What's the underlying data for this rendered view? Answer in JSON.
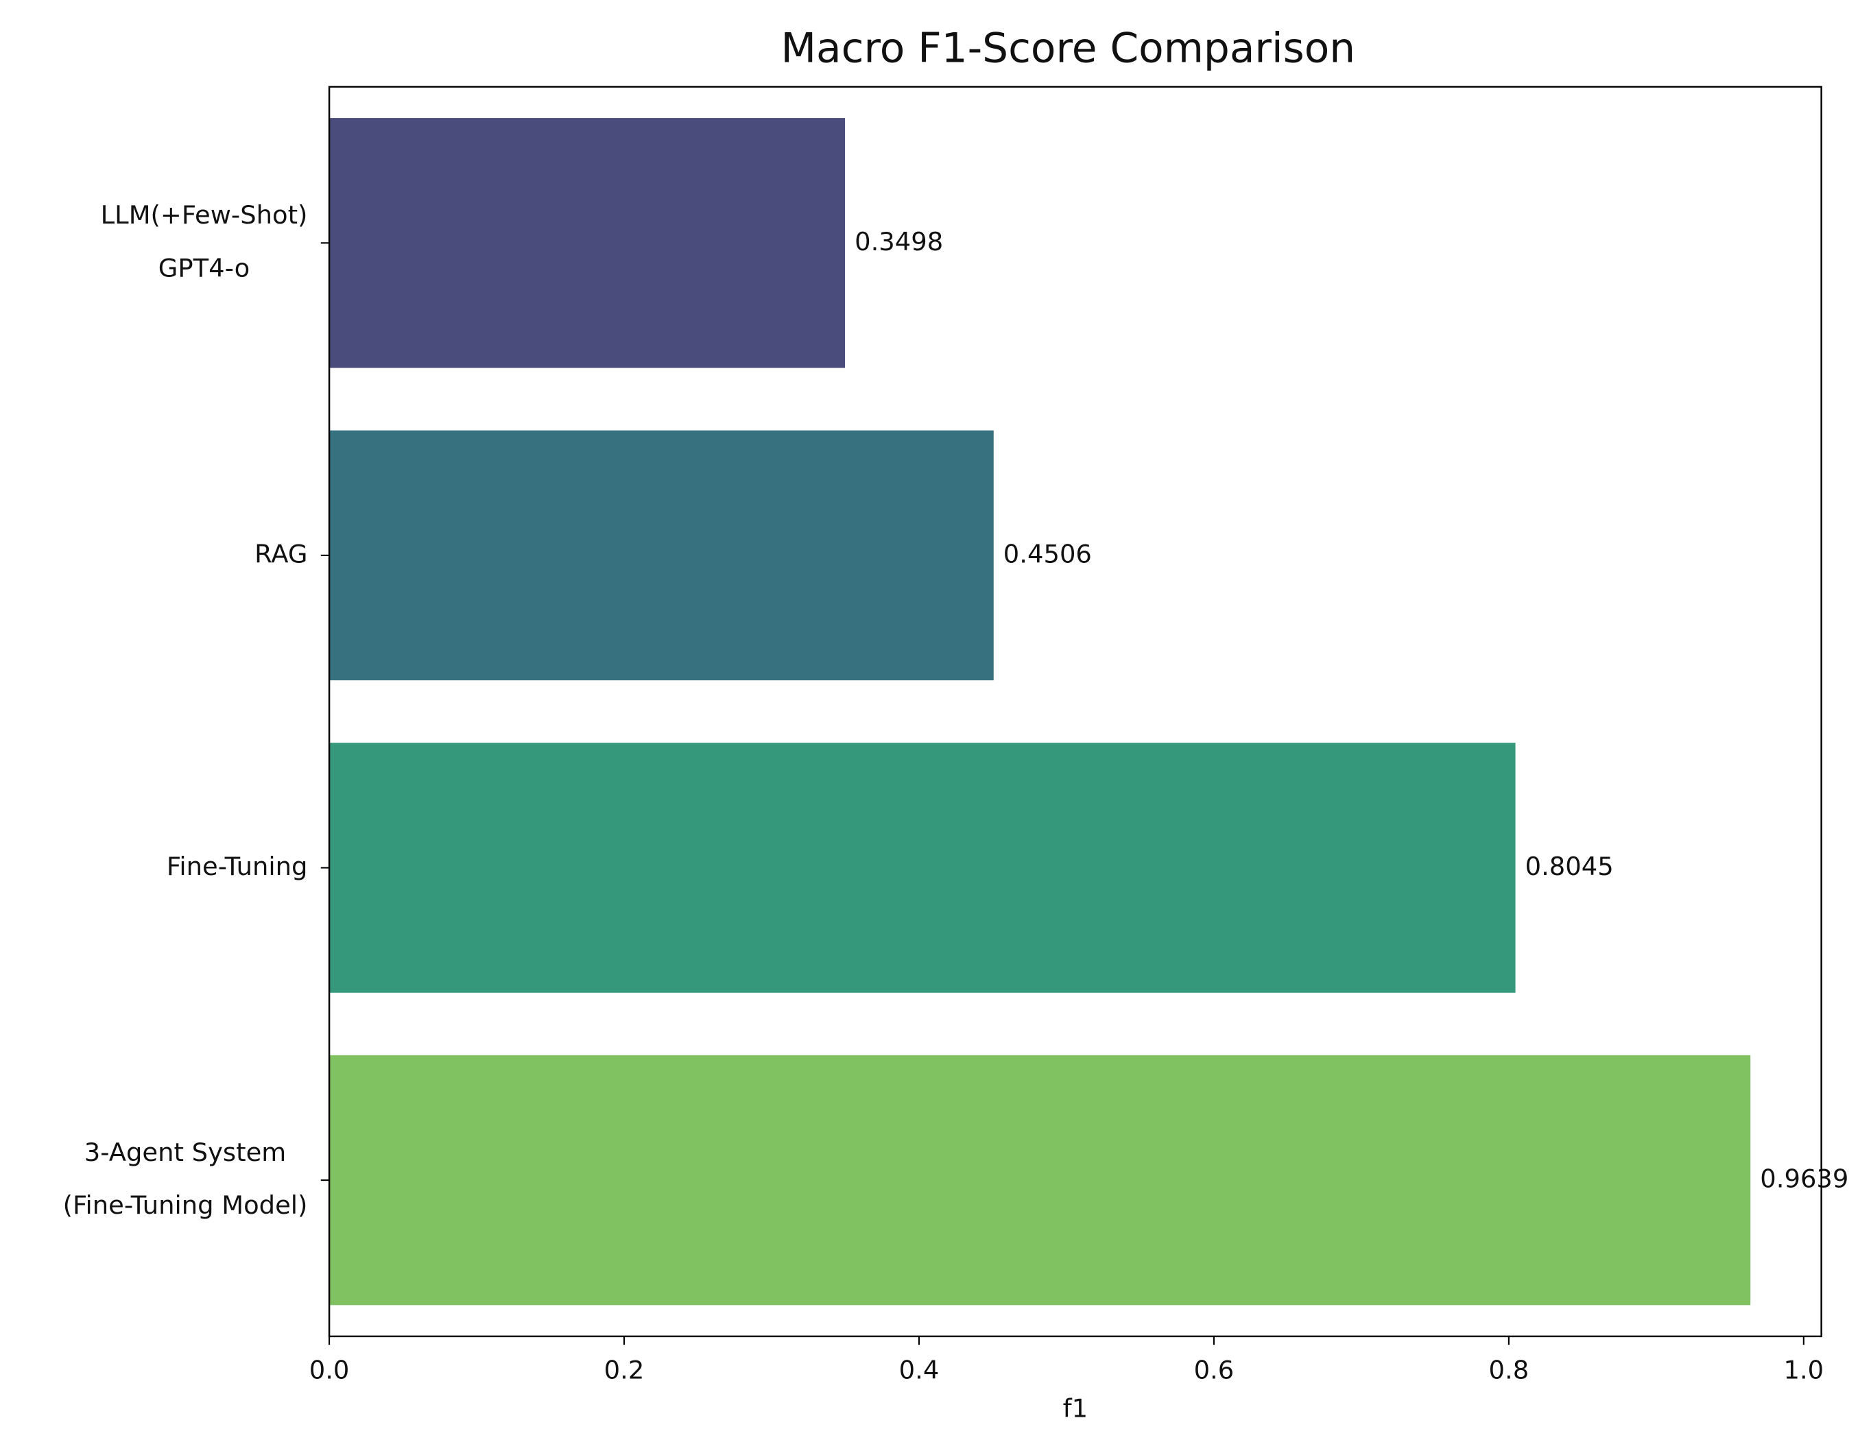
{
  "chart_data": {
    "type": "barh",
    "title": "Macro F1-Score Comparison",
    "x_label": "f1",
    "categories": [
      [
        "LLM(+Few-Shot)",
        "GPT4-o"
      ],
      [
        "RAG"
      ],
      [
        "Fine-Tuning"
      ],
      [
        "3-Agent System",
        "(Fine-Tuning Model)"
      ]
    ],
    "values": [
      0.3498,
      0.4506,
      0.8045,
      0.9639
    ],
    "colors": [
      "#4a4d7c",
      "#37717f",
      "#35987b",
      "#80c262"
    ],
    "xlim": [
      0,
      1.012
    ],
    "xticks": [
      {
        "value": 0,
        "label": "0.0"
      },
      0.2,
      0.4,
      0.6,
      0.8,
      {
        "value": 1,
        "label": "1.0"
      }
    ]
  }
}
